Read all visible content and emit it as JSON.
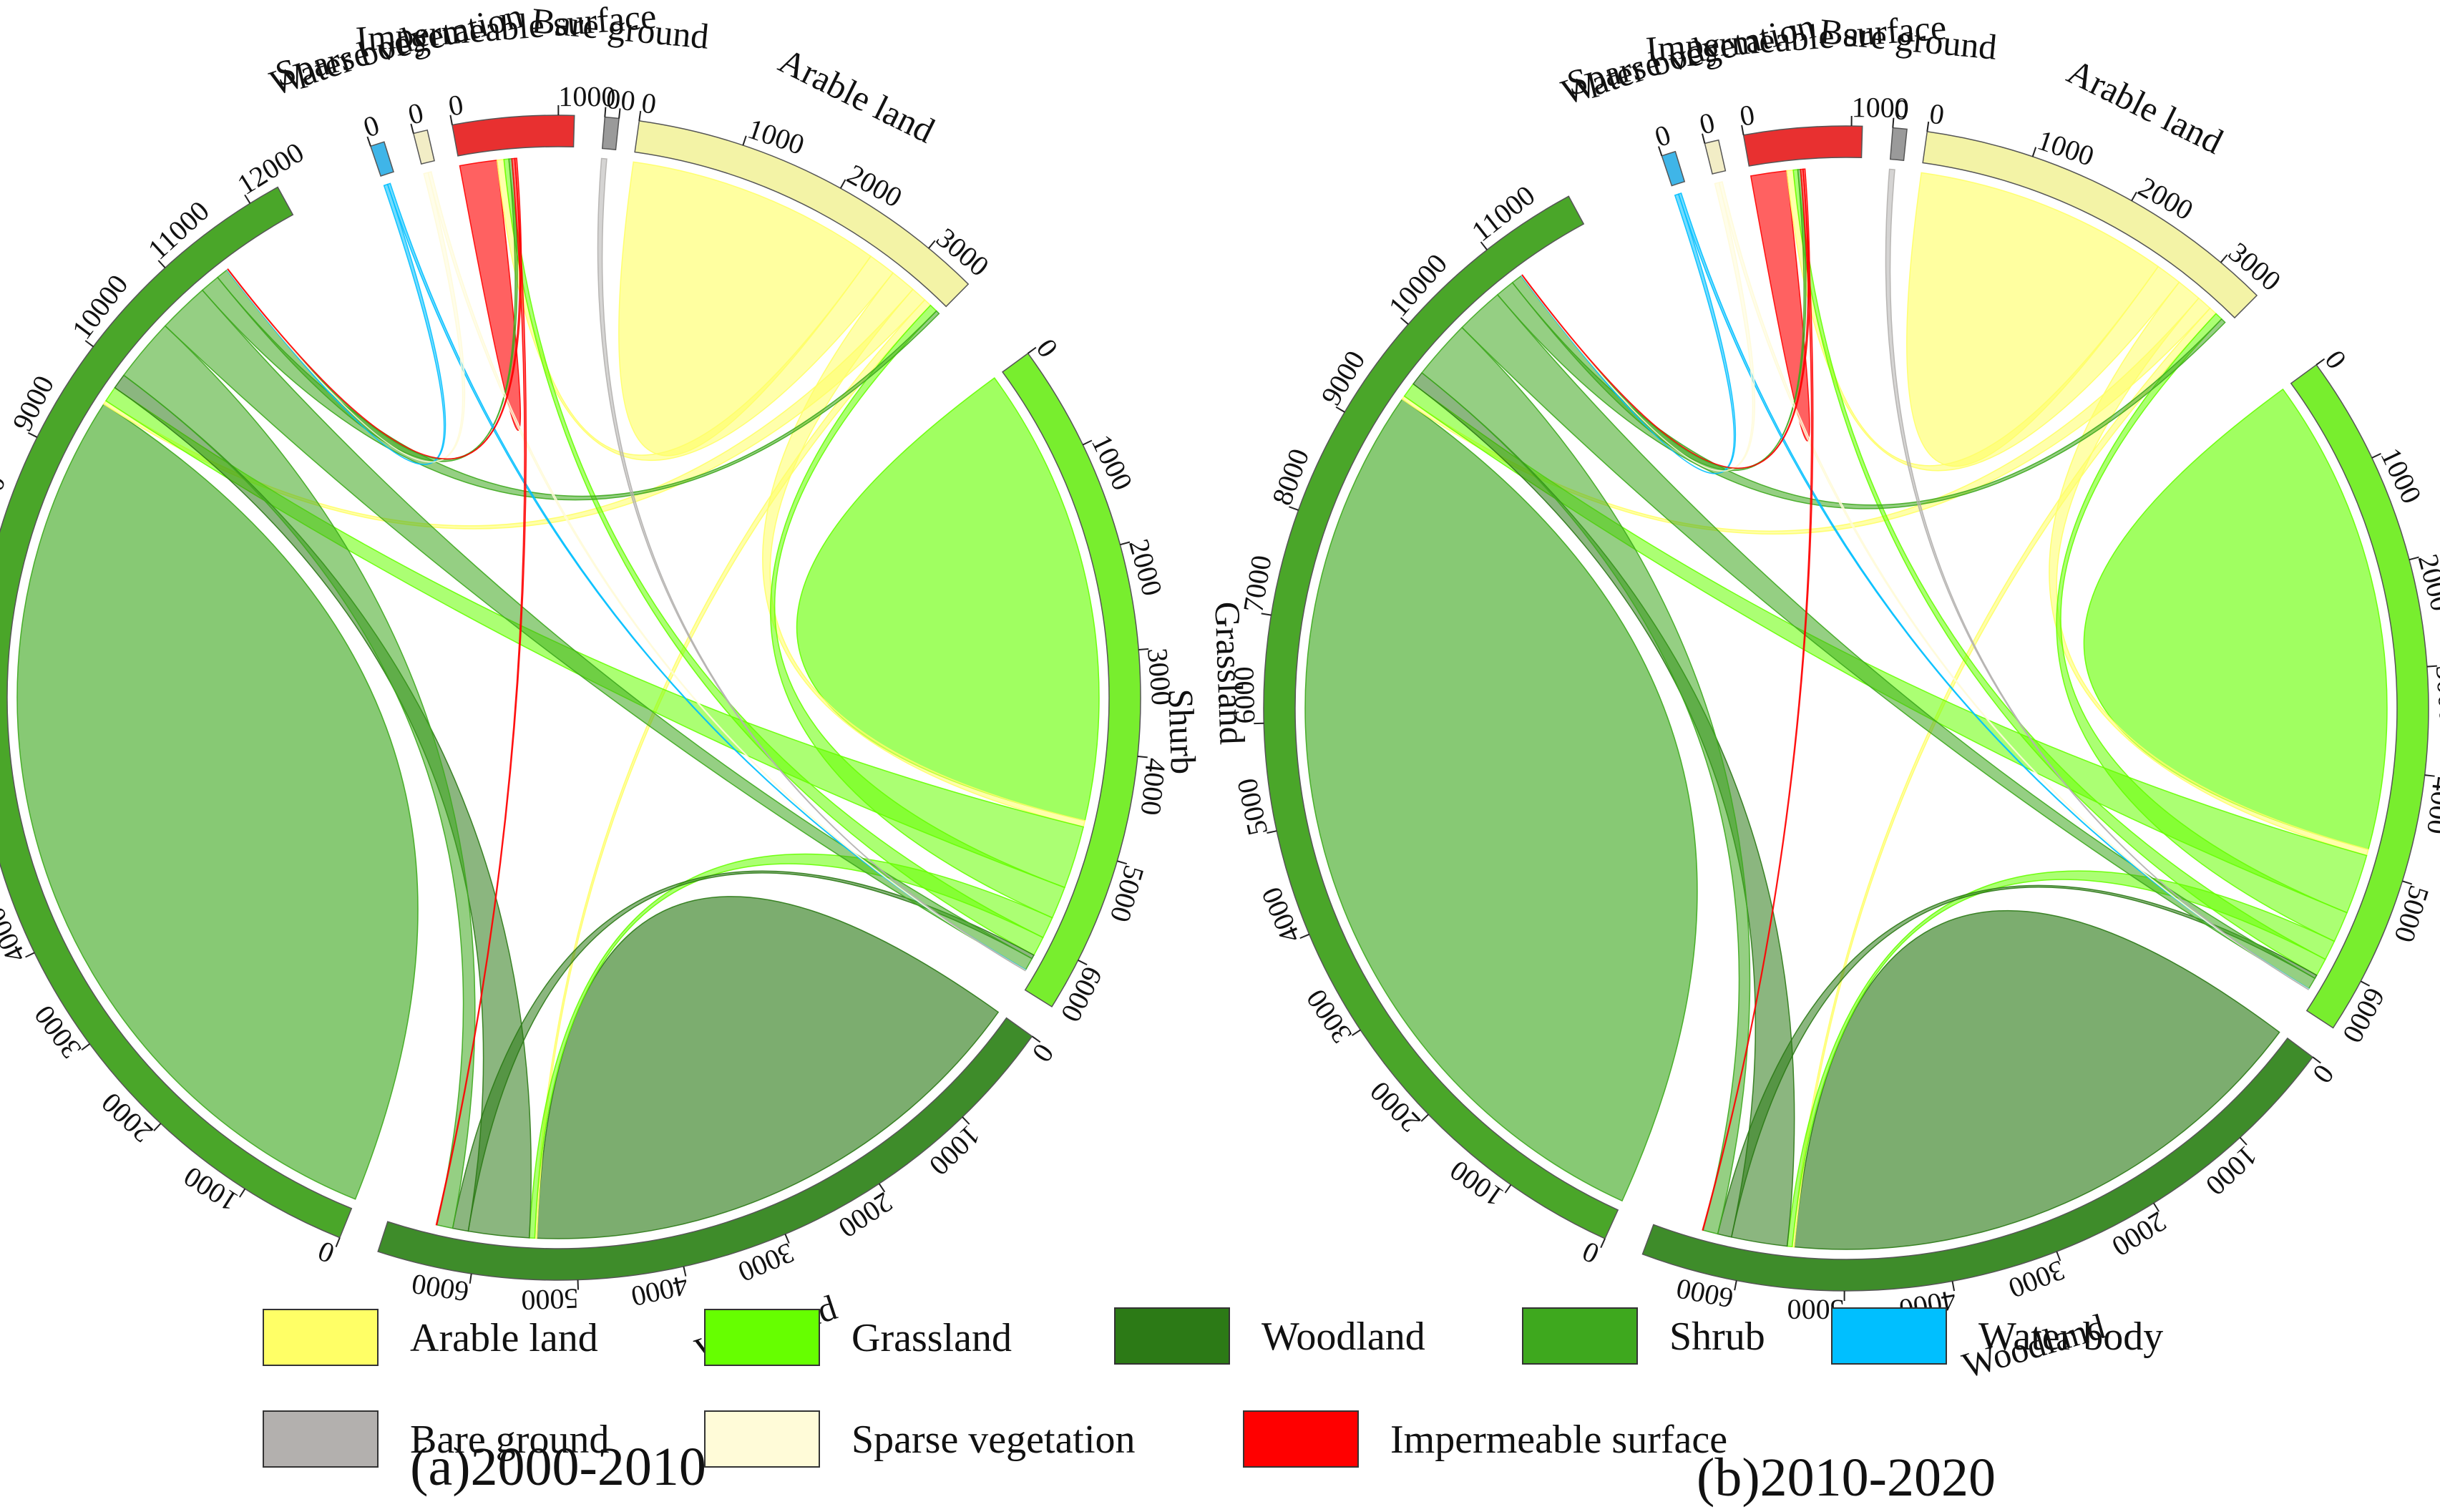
{
  "chart_data": [
    {
      "type": "chord",
      "title": "(a)2000-2010",
      "groups": [
        {
          "name": "Arable land",
          "total": 3500,
          "ticks": [
            "0",
            "1000",
            "2000",
            "3000"
          ],
          "color": "#ffff66",
          "arc_color": "#f3f3a6"
        },
        {
          "name": "Grassland",
          "total": 6500,
          "ticks": [
            "0",
            "1000",
            "2000",
            "3000",
            "4000",
            "5000",
            "6000"
          ],
          "color": "#66ff00",
          "arc_color": "#78ee2e"
        },
        {
          "name": "Woodland",
          "total": 6900,
          "ticks": [
            "0",
            "1000",
            "2000",
            "3000",
            "4000",
            "5000",
            "6000"
          ],
          "color": "#2c7a16",
          "arc_color": "#3e8c2a"
        },
        {
          "name": "Shurb",
          "total": 12300,
          "ticks": [
            "0",
            "1000",
            "2000",
            "3000",
            "4000",
            "5000",
            "6000",
            "7000",
            "8000",
            "9000",
            "10000",
            "11000",
            "12000"
          ],
          "color": "#3ea81e",
          "arc_color": "#4aa629"
        },
        {
          "name": "Water body",
          "total": 70,
          "ticks": [
            "0"
          ],
          "color": "#00bfff",
          "arc_color": "#3fb5e8"
        },
        {
          "name": "Sparse vegetation",
          "total": 60,
          "ticks": [
            "0"
          ],
          "color": "#fffbd8",
          "arc_color": "#f2edc6"
        },
        {
          "name": "Impermeable surface",
          "total": 1150,
          "ticks": [
            "0",
            "1000"
          ],
          "color": "#ff0000",
          "arc_color": "#e83030"
        },
        {
          "name": "Bare ground",
          "total": 20,
          "ticks": [
            "0",
            "0"
          ],
          "color": "#b3b0ae",
          "arc_color": "#9a9a9a"
        }
      ],
      "flows": [
        {
          "from": "Arable land",
          "to": "Arable land",
          "value": 2600
        },
        {
          "from": "Arable land",
          "to": "Impermeable surface",
          "value": 280
        },
        {
          "from": "Arable land",
          "to": "Grassland",
          "value": 260
        },
        {
          "from": "Arable land",
          "to": "Shurb",
          "value": 160
        },
        {
          "from": "Arable land",
          "to": "Woodland",
          "value": 80
        },
        {
          "from": "Grassland",
          "to": "Grassland",
          "value": 4700
        },
        {
          "from": "Grassland",
          "to": "Shurb",
          "value": 640
        },
        {
          "from": "Grassland",
          "to": "Arable land",
          "value": 330
        },
        {
          "from": "Grassland",
          "to": "Woodland",
          "value": 220
        },
        {
          "from": "Grassland",
          "to": "Impermeable surface",
          "value": 200
        },
        {
          "from": "Woodland",
          "to": "Woodland",
          "value": 5400
        },
        {
          "from": "Woodland",
          "to": "Shurb",
          "value": 620
        },
        {
          "from": "Woodland",
          "to": "Grassland",
          "value": 160
        },
        {
          "from": "Shurb",
          "to": "Shurb",
          "value": 9600
        },
        {
          "from": "Shurb",
          "to": "Woodland",
          "value": 650
        },
        {
          "from": "Shurb",
          "to": "Grassland",
          "value": 520
        },
        {
          "from": "Shurb",
          "to": "Arable land",
          "value": 200
        },
        {
          "from": "Shurb",
          "to": "Impermeable surface",
          "value": 120
        },
        {
          "from": "Water body",
          "to": "Shurb",
          "value": 20
        },
        {
          "from": "Water body",
          "to": "Grassland",
          "value": 15
        },
        {
          "from": "Sparse vegetation",
          "to": "Shurb",
          "value": 20
        },
        {
          "from": "Sparse vegetation",
          "to": "Grassland",
          "value": 15
        },
        {
          "from": "Impermeable surface",
          "to": "Impermeable surface",
          "value": 380
        },
        {
          "from": "Impermeable surface",
          "to": "Woodland",
          "value": 30
        },
        {
          "from": "Impermeable surface",
          "to": "Shurb",
          "value": 20
        },
        {
          "from": "Bare ground",
          "to": "Grassland",
          "value": 8
        }
      ]
    },
    {
      "type": "chord",
      "title": "(b)2010-2020",
      "groups": [
        {
          "name": "Arable land",
          "total": 3450,
          "ticks": [
            "0",
            "1000",
            "2000",
            "3000"
          ],
          "color": "#ffff66",
          "arc_color": "#f3f3a6"
        },
        {
          "name": "Grassland",
          "total": 6500,
          "ticks": [
            "0",
            "1000",
            "2000",
            "3000",
            "4000",
            "5000",
            "6000"
          ],
          "color": "#66ff00",
          "arc_color": "#78ee2e"
        },
        {
          "name": "Woodland",
          "total": 6900,
          "ticks": [
            "0",
            "1000",
            "2000",
            "3000",
            "4000",
            "5000",
            "6000"
          ],
          "color": "#2c7a16",
          "arc_color": "#3e8c2a"
        },
        {
          "name": "Shurb",
          "total": 11900,
          "ticks": [
            "0",
            "1000",
            "2000",
            "3000",
            "4000",
            "5000",
            "6000",
            "7000",
            "8000",
            "9000",
            "10000",
            "11000"
          ],
          "color": "#3ea81e",
          "arc_color": "#4aa629"
        },
        {
          "name": "Water body",
          "total": 70,
          "ticks": [
            "0"
          ],
          "color": "#00bfff",
          "arc_color": "#3fb5e8"
        },
        {
          "name": "Sparse vegetation",
          "total": 60,
          "ticks": [
            "0"
          ],
          "color": "#fffbd8",
          "arc_color": "#f2edc6"
        },
        {
          "name": "Impermeable surface",
          "total": 1100,
          "ticks": [
            "0",
            "1000"
          ],
          "color": "#ff0000",
          "arc_color": "#e83030"
        },
        {
          "name": "Bare ground",
          "total": 20,
          "ticks": [
            "0"
          ],
          "color": "#b3b0ae",
          "arc_color": "#9a9a9a"
        }
      ],
      "flows": [
        {
          "from": "Arable land",
          "to": "Arable land",
          "value": 2550
        },
        {
          "from": "Arable land",
          "to": "Impermeable surface",
          "value": 260
        },
        {
          "from": "Arable land",
          "to": "Grassland",
          "value": 250
        },
        {
          "from": "Arable land",
          "to": "Shurb",
          "value": 150
        },
        {
          "from": "Arable land",
          "to": "Woodland",
          "value": 80
        },
        {
          "from": "Grassland",
          "to": "Grassland",
          "value": 4800
        },
        {
          "from": "Grassland",
          "to": "Shurb",
          "value": 600
        },
        {
          "from": "Grassland",
          "to": "Arable land",
          "value": 310
        },
        {
          "from": "Grassland",
          "to": "Woodland",
          "value": 200
        },
        {
          "from": "Grassland",
          "to": "Impermeable surface",
          "value": 180
        },
        {
          "from": "Woodland",
          "to": "Woodland",
          "value": 5500
        },
        {
          "from": "Woodland",
          "to": "Shurb",
          "value": 560
        },
        {
          "from": "Woodland",
          "to": "Grassland",
          "value": 140
        },
        {
          "from": "Shurb",
          "to": "Shurb",
          "value": 9400
        },
        {
          "from": "Shurb",
          "to": "Woodland",
          "value": 600
        },
        {
          "from": "Shurb",
          "to": "Grassland",
          "value": 480
        },
        {
          "from": "Shurb",
          "to": "Arable land",
          "value": 190
        },
        {
          "from": "Shurb",
          "to": "Impermeable surface",
          "value": 110
        },
        {
          "from": "Water body",
          "to": "Shurb",
          "value": 20
        },
        {
          "from": "Water body",
          "to": "Grassland",
          "value": 15
        },
        {
          "from": "Sparse vegetation",
          "to": "Shurb",
          "value": 20
        },
        {
          "from": "Sparse vegetation",
          "to": "Grassland",
          "value": 15
        },
        {
          "from": "Impermeable surface",
          "to": "Impermeable surface",
          "value": 360
        },
        {
          "from": "Impermeable surface",
          "to": "Woodland",
          "value": 25
        },
        {
          "from": "Impermeable surface",
          "to": "Shurb",
          "value": 20
        },
        {
          "from": "Bare ground",
          "to": "Grassland",
          "value": 8
        }
      ]
    }
  ],
  "legend": [
    {
      "label": "Arable land",
      "color": "#ffff66"
    },
    {
      "label": "Grassland",
      "color": "#66ff00"
    },
    {
      "label": "Woodland",
      "color": "#2c7a16"
    },
    {
      "label": "Shrub",
      "color": "#3ea81e"
    },
    {
      "label": "Water body",
      "color": "#00bfff"
    },
    {
      "label": "Bare ground",
      "color": "#b3b0ae"
    },
    {
      "label": "Sparse vegetation",
      "color": "#fffbd8"
    },
    {
      "label": "Impermeable surface",
      "color": "#ff0000"
    }
  ]
}
